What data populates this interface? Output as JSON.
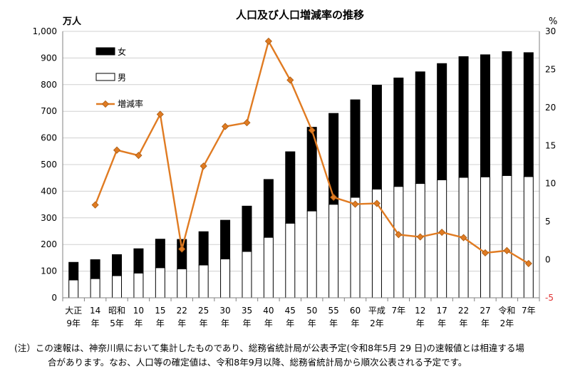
{
  "chart_data": {
    "type": "bar",
    "title": "人口及び人口増減率の推移",
    "y_left_unit": "万人",
    "y_right_unit": "%",
    "ylim": [
      0,
      1000
    ],
    "y2lim": [
      -5,
      30
    ],
    "y_ticks": [
      "0",
      "100",
      "200",
      "300",
      "400",
      "500",
      "600",
      "700",
      "800",
      "900",
      "1,000"
    ],
    "y2_ticks": [
      "-5",
      "0",
      "5",
      "10",
      "15",
      "20",
      "25",
      "30"
    ],
    "categories": [
      [
        "大正",
        "9年"
      ],
      [
        "14",
        "年"
      ],
      [
        "昭和",
        "5年"
      ],
      [
        "10",
        "年"
      ],
      [
        "15",
        "年"
      ],
      [
        "22",
        "年"
      ],
      [
        "25",
        "年"
      ],
      [
        "30",
        "年"
      ],
      [
        "35",
        "年"
      ],
      [
        "40",
        "年"
      ],
      [
        "45",
        "年"
      ],
      [
        "50",
        "年"
      ],
      [
        "55",
        "年"
      ],
      [
        "60",
        "年"
      ],
      [
        "平成",
        "2年"
      ],
      [
        "7年",
        ""
      ],
      [
        "12",
        "年"
      ],
      [
        "17",
        "年"
      ],
      [
        "22",
        "年"
      ],
      [
        "27",
        "年"
      ],
      [
        "令和",
        "2年"
      ],
      [
        "7年",
        ""
      ]
    ],
    "series": [
      {
        "name": "男",
        "type": "bar",
        "color": "#ffffff",
        "values": [
          67,
          72,
          83,
          93,
          113,
          109,
          123,
          146,
          174,
          227,
          280,
          326,
          351,
          377,
          408,
          418,
          429,
          443,
          452,
          454,
          459,
          455
        ]
      },
      {
        "name": "女",
        "type": "bar",
        "color": "#000000",
        "values": [
          66,
          71,
          79,
          91,
          107,
          110,
          125,
          145,
          170,
          217,
          268,
          314,
          341,
          366,
          390,
          407,
          419,
          436,
          453,
          458,
          465,
          465
        ]
      },
      {
        "name": "増減率",
        "type": "line",
        "axis": "right",
        "color": "#e07b22",
        "values": [
          null,
          7.2,
          14.4,
          13.7,
          19.1,
          1.4,
          12.3,
          17.5,
          18.0,
          28.7,
          23.6,
          17.0,
          8.2,
          7.3,
          7.4,
          3.3,
          3.0,
          3.6,
          2.9,
          0.9,
          1.2,
          -0.5
        ]
      }
    ]
  },
  "notes": {
    "line1": "(注）この速報は、神奈川県において集計したものであり、総務省統計局が公表予定(令和8年5月 29 日)の速報値とは相違する場",
    "line2": "合があります。なお、人口等の確定値は、令和8年9月以降、総務省統計局から順次公表される予定です。"
  }
}
